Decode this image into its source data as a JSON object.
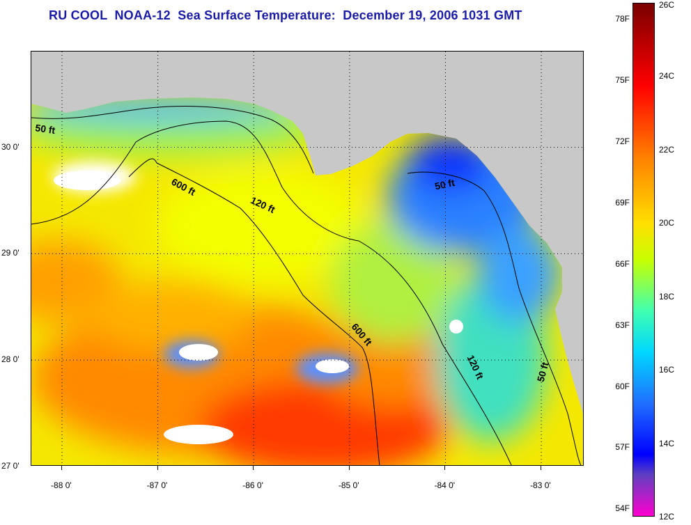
{
  "title": "RU COOL  NOAA-12  Sea Surface Temperature:  December 19, 2006 1031 GMT",
  "map": {
    "lat_min": 27.0,
    "lat_max": 30.9,
    "lon_min": -88.32,
    "lon_max": -82.55,
    "lat_labels": [
      {
        "value": 27,
        "label": "27 0'"
      },
      {
        "value": 28,
        "label": "28 0'"
      },
      {
        "value": 29,
        "label": "29 0'"
      },
      {
        "value": 30,
        "label": "30 0'"
      }
    ],
    "lon_labels": [
      {
        "value": -88,
        "label": "-88 0'"
      },
      {
        "value": -87,
        "label": "-87 0'"
      },
      {
        "value": -86,
        "label": "-86 0'"
      },
      {
        "value": -85,
        "label": "-85 0'"
      },
      {
        "value": -84,
        "label": "-84 0'"
      },
      {
        "value": -83,
        "label": "-83 0'"
      }
    ],
    "contour_labels": [
      {
        "label": "50 ft",
        "lon": -88.18,
        "lat": 30.14,
        "rotate": 8
      },
      {
        "label": "600 ft",
        "lon": -86.75,
        "lat": 29.6,
        "rotate": 28
      },
      {
        "label": "120 ft",
        "lon": -85.92,
        "lat": 29.43,
        "rotate": 25
      },
      {
        "label": "50 ft",
        "lon": -84.0,
        "lat": 29.62,
        "rotate": -12
      },
      {
        "label": "600 ft",
        "lon": -84.9,
        "lat": 28.22,
        "rotate": 50
      },
      {
        "label": "120 ft",
        "lon": -83.72,
        "lat": 27.92,
        "rotate": 65
      },
      {
        "label": "50 ft",
        "lon": -82.95,
        "lat": 27.88,
        "rotate": -75
      }
    ],
    "land_color": "#c8c8c8",
    "cloud_color": "#ffffff"
  },
  "colorbar": {
    "f_labels": [
      {
        "value": 78,
        "label": "78F"
      },
      {
        "value": 75,
        "label": "75F"
      },
      {
        "value": 72,
        "label": "72F"
      },
      {
        "value": 69,
        "label": "69F"
      },
      {
        "value": 66,
        "label": "66F"
      },
      {
        "value": 63,
        "label": "63F"
      },
      {
        "value": 60,
        "label": "60F"
      },
      {
        "value": 57,
        "label": "57F"
      },
      {
        "value": 54,
        "label": "54F"
      }
    ],
    "c_labels": [
      {
        "value": 26,
        "label": "26C"
      },
      {
        "value": 24,
        "label": "24C"
      },
      {
        "value": 22,
        "label": "22C"
      },
      {
        "value": 20,
        "label": "20C"
      },
      {
        "value": 18,
        "label": "18C"
      },
      {
        "value": 16,
        "label": "16C"
      },
      {
        "value": 14,
        "label": "14C"
      },
      {
        "value": 12,
        "label": "12C"
      }
    ],
    "c_min": 12,
    "c_max": 26
  }
}
